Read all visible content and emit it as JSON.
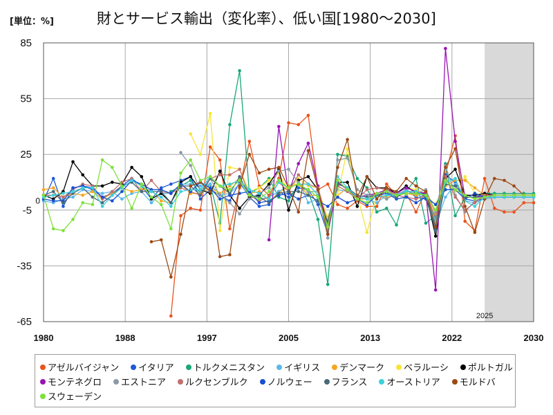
{
  "chart_data": {
    "type": "line",
    "title": "財とサービス輸出（変化率）、低い国[1980～2030]",
    "unit": "[単位：%]",
    "xlabel": "",
    "ylabel": "",
    "x": [
      1980,
      1981,
      1982,
      1983,
      1984,
      1985,
      1986,
      1987,
      1988,
      1989,
      1990,
      1991,
      1992,
      1993,
      1994,
      1995,
      1996,
      1997,
      1998,
      1999,
      2000,
      2001,
      2002,
      2003,
      2004,
      2005,
      2006,
      2007,
      2008,
      2009,
      2010,
      2011,
      2012,
      2013,
      2014,
      2015,
      2016,
      2017,
      2018,
      2019,
      2020,
      2021,
      2022,
      2023,
      2024,
      2025,
      2026,
      2027,
      2028,
      2029,
      2030
    ],
    "x_tick_labels": [
      "1980",
      "1988",
      "1997",
      "2005",
      "2013",
      "2022",
      "2030"
    ],
    "xlim": [
      1980,
      2030
    ],
    "ylim": [
      -65,
      85
    ],
    "y_ticks": [
      85,
      55,
      25,
      -5,
      -35,
      -65
    ],
    "zero_label": "0",
    "grid": true,
    "legend_position": "bottom",
    "forecast": {
      "start": 2025,
      "end": 2030,
      "label": "2025",
      "color": "#d9d9d9"
    },
    "series": [
      {
        "name": "アゼルバイジャン",
        "color": "#e8541c",
        "values": [
          null,
          null,
          null,
          null,
          null,
          null,
          null,
          null,
          null,
          null,
          null,
          null,
          null,
          -62,
          -8,
          -4,
          -5,
          29,
          22,
          -15,
          7,
          32,
          8,
          3,
          12,
          42,
          41,
          46,
          6,
          9,
          -2,
          -4,
          0,
          -3,
          -3,
          9,
          3,
          4,
          -6,
          5,
          -10,
          14,
          35,
          -11,
          -16,
          12,
          -4,
          -6,
          -6,
          -1,
          -1
        ]
      },
      {
        "name": "イタリア",
        "color": "#2058d8",
        "values": [
          0,
          12,
          -3,
          7,
          8,
          6,
          2,
          4,
          8,
          12,
          8,
          1,
          7,
          9,
          11,
          13,
          1,
          6,
          3,
          0,
          10,
          2,
          -3,
          -2,
          5,
          2,
          7,
          6,
          -2,
          -18,
          11,
          6,
          2,
          1,
          3,
          4,
          2,
          6,
          2,
          1,
          -14,
          14,
          10,
          1,
          0,
          1,
          2,
          2,
          2,
          2,
          2
        ]
      },
      {
        "name": "トルクメニスタン",
        "color": "#17a77a",
        "values": [
          null,
          null,
          null,
          null,
          null,
          null,
          null,
          null,
          null,
          null,
          null,
          null,
          null,
          5,
          8,
          11,
          4,
          9,
          -12,
          41,
          70,
          4,
          7,
          12,
          2,
          0,
          9,
          5,
          -10,
          -45,
          25,
          24,
          12,
          7,
          -6,
          -4,
          -13,
          5,
          12,
          -12,
          -8,
          20,
          -8,
          2,
          2,
          4,
          4,
          4,
          4,
          4,
          4
        ]
      },
      {
        "name": "イギリス",
        "color": "#5cb8ec",
        "values": [
          0,
          -1,
          1,
          2,
          6,
          5,
          4,
          5,
          1,
          4,
          5,
          -1,
          4,
          4,
          9,
          9,
          8,
          9,
          3,
          4,
          9,
          3,
          1,
          2,
          5,
          8,
          11,
          -1,
          1,
          -9,
          6,
          5,
          1,
          1,
          -1,
          3,
          3,
          6,
          3,
          2,
          -13,
          2,
          9,
          0,
          -1,
          1,
          2,
          2,
          2,
          2,
          2
        ]
      },
      {
        "name": "デンマーク",
        "color": "#f4a623",
        "values": [
          6,
          7,
          2,
          4,
          3,
          5,
          1,
          4,
          7,
          5,
          6,
          6,
          0,
          -1,
          9,
          4,
          4,
          7,
          4,
          8,
          12,
          4,
          5,
          0,
          4,
          8,
          9,
          3,
          3,
          -9,
          3,
          7,
          1,
          1,
          3,
          2,
          3,
          4,
          3,
          5,
          -7,
          8,
          11,
          11,
          7,
          3,
          3,
          3,
          3,
          3,
          3
        ]
      },
      {
        "name": "ベラルーシ",
        "color": "#f7e436",
        "values": [
          null,
          null,
          null,
          null,
          null,
          null,
          null,
          null,
          null,
          null,
          null,
          null,
          null,
          null,
          null,
          36,
          25,
          47,
          -16,
          18,
          17,
          5,
          7,
          11,
          15,
          5,
          12,
          8,
          7,
          -10,
          3,
          28,
          3,
          -17,
          3,
          1,
          4,
          7,
          6,
          3,
          -2,
          11,
          5,
          13,
          4,
          3,
          3,
          3,
          3,
          3,
          3
        ]
      },
      {
        "name": "ポルトガル",
        "color": "#000000",
        "values": [
          3,
          1,
          5,
          21,
          14,
          8,
          8,
          10,
          9,
          18,
          13,
          1,
          4,
          -1,
          10,
          13,
          6,
          4,
          16,
          3,
          -4,
          2,
          3,
          9,
          17,
          -5,
          11,
          13,
          6,
          -14,
          10,
          10,
          -3,
          13,
          7,
          7,
          4,
          8,
          4,
          4,
          -19,
          12,
          17,
          3,
          3,
          4,
          3,
          3,
          3,
          3,
          3
        ]
      },
      {
        "name": "モンテネグロ",
        "color": "#9a12b3",
        "values": [
          null,
          null,
          null,
          null,
          null,
          null,
          null,
          null,
          null,
          null,
          null,
          null,
          null,
          null,
          null,
          null,
          null,
          null,
          null,
          null,
          null,
          null,
          null,
          -21,
          40,
          4,
          20,
          31,
          8,
          -18,
          10,
          6,
          2,
          3,
          4,
          6,
          4,
          7,
          5,
          4,
          -48,
          82,
          32,
          2,
          2,
          3,
          3,
          3,
          3,
          3,
          3
        ]
      },
      {
        "name": "エストニア",
        "color": "#8c9aa6",
        "values": [
          null,
          null,
          null,
          null,
          null,
          null,
          null,
          null,
          null,
          null,
          null,
          null,
          null,
          null,
          26,
          19,
          5,
          12,
          3,
          -1,
          -7,
          1,
          4,
          7,
          16,
          17,
          10,
          5,
          5,
          -20,
          22,
          23,
          6,
          3,
          3,
          1,
          4,
          5,
          4,
          6,
          -6,
          19,
          3,
          -6,
          0,
          2,
          3,
          3,
          3,
          3,
          3
        ]
      },
      {
        "name": "ルクセンブルク",
        "color": "#c0706e",
        "values": [
          3,
          3,
          2,
          6,
          9,
          8,
          1,
          5,
          10,
          12,
          5,
          11,
          5,
          4,
          7,
          5,
          3,
          12,
          14,
          14,
          17,
          3,
          0,
          2,
          10,
          5,
          14,
          9,
          7,
          -12,
          8,
          5,
          1,
          6,
          7,
          6,
          3,
          2,
          1,
          3,
          -9,
          13,
          2,
          -5,
          -1,
          3,
          3,
          3,
          3,
          3,
          3
        ]
      },
      {
        "name": "ノルウェー",
        "color": "#1a4fd0",
        "values": [
          1,
          0,
          0,
          7,
          8,
          7,
          2,
          0,
          5,
          11,
          9,
          6,
          6,
          4,
          9,
          5,
          10,
          7,
          1,
          3,
          4,
          5,
          -1,
          0,
          3,
          4,
          1,
          3,
          0,
          -3,
          2,
          -1,
          1,
          -2,
          3,
          4,
          1,
          2,
          -1,
          2,
          -2,
          6,
          6,
          1,
          4,
          2,
          2,
          2,
          2,
          2,
          2
        ]
      },
      {
        "name": "フランス",
        "color": "#486a7a",
        "values": [
          3,
          5,
          -1,
          4,
          7,
          2,
          -1,
          3,
          8,
          10,
          5,
          5,
          5,
          -1,
          8,
          8,
          3,
          12,
          8,
          4,
          13,
          3,
          2,
          -1,
          4,
          5,
          5,
          3,
          0,
          -11,
          9,
          7,
          3,
          2,
          3,
          5,
          2,
          5,
          5,
          2,
          -16,
          9,
          8,
          2,
          2,
          2,
          3,
          3,
          3,
          3,
          3
        ]
      },
      {
        "name": "オーストリア",
        "color": "#3dd0dc",
        "values": [
          2,
          3,
          4,
          5,
          7,
          7,
          -3,
          3,
          7,
          11,
          8,
          5,
          2,
          -3,
          5,
          6,
          6,
          13,
          8,
          9,
          11,
          6,
          4,
          1,
          10,
          7,
          9,
          9,
          3,
          -15,
          13,
          7,
          2,
          1,
          2,
          3,
          3,
          5,
          5,
          3,
          -11,
          10,
          12,
          0,
          -3,
          2,
          2,
          2,
          2,
          2,
          2
        ]
      },
      {
        "name": "モルドバ",
        "color": "#9c4a14",
        "values": [
          null,
          null,
          null,
          null,
          null,
          null,
          null,
          null,
          null,
          null,
          null,
          -22,
          -21,
          -41,
          -18,
          8,
          10,
          5,
          -30,
          -29,
          8,
          25,
          15,
          17,
          18,
          7,
          -6,
          27,
          6,
          -18,
          18,
          33,
          2,
          13,
          1,
          7,
          5,
          12,
          8,
          5,
          -14,
          18,
          28,
          -3,
          -17,
          1,
          12,
          11,
          8,
          3,
          3
        ]
      },
      {
        "name": "スウェーデン",
        "color": "#7fe03c",
        "values": [
          3,
          -15,
          -16,
          -10,
          -1,
          -2,
          22,
          18,
          8,
          -4,
          9,
          2,
          -2,
          -15,
          15,
          22,
          11,
          13,
          8,
          6,
          11,
          3,
          1,
          5,
          11,
          7,
          9,
          6,
          2,
          -14,
          11,
          6,
          1,
          -1,
          4,
          5,
          3,
          4,
          4,
          3,
          -5,
          11,
          6,
          3,
          1,
          2,
          3,
          3,
          3,
          3,
          3
        ]
      }
    ]
  }
}
